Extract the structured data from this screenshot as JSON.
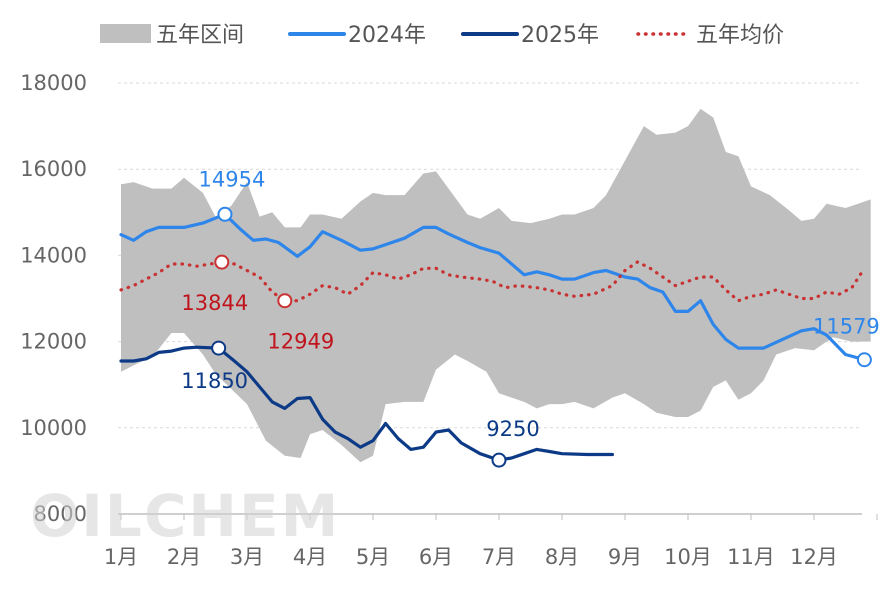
{
  "chart_data": {
    "type": "line",
    "watermark": "OILCHEM",
    "yaxis": {
      "min": 8000,
      "max": 18000,
      "ticks": [
        8000,
        10000,
        12000,
        14000,
        16000,
        18000
      ]
    },
    "xaxis": {
      "min": 1,
      "max": 13,
      "ticks": [
        1,
        2,
        3,
        4,
        5,
        6,
        7,
        8,
        9,
        10,
        11,
        12
      ],
      "tick_labels": [
        "1月",
        "2月",
        "3月",
        "4月",
        "5月",
        "6月",
        "7月",
        "8月",
        "9月",
        "10月",
        "11月",
        "12月"
      ]
    },
    "legend": {
      "placement": "top",
      "items": [
        {
          "label": "五年区间",
          "kind": "area",
          "color": "#bfbfbf"
        },
        {
          "label": "2024年",
          "kind": "line",
          "color": "#2f86ea"
        },
        {
          "label": "2025年",
          "kind": "line",
          "color": "#0d3a86"
        },
        {
          "label": "五年均价",
          "kind": "dotted",
          "color": "#c83232"
        }
      ]
    },
    "band": {
      "name": "五年区间",
      "color": "#bfbfbf",
      "upper": [
        [
          1.0,
          15650
        ],
        [
          1.2,
          15700
        ],
        [
          1.5,
          15550
        ],
        [
          1.8,
          15550
        ],
        [
          2.0,
          15800
        ],
        [
          2.3,
          15450
        ],
        [
          2.5,
          14900
        ],
        [
          2.75,
          15150
        ],
        [
          3.0,
          15700
        ],
        [
          3.2,
          14900
        ],
        [
          3.4,
          15000
        ],
        [
          3.6,
          14650
        ],
        [
          3.85,
          14650
        ],
        [
          4.0,
          14950
        ],
        [
          4.2,
          14950
        ],
        [
          4.5,
          14850
        ],
        [
          4.8,
          15250
        ],
        [
          5.0,
          15450
        ],
        [
          5.2,
          15400
        ],
        [
          5.5,
          15400
        ],
        [
          5.8,
          15900
        ],
        [
          6.0,
          15950
        ],
        [
          6.2,
          15550
        ],
        [
          6.5,
          14950
        ],
        [
          6.7,
          14850
        ],
        [
          7.0,
          15100
        ],
        [
          7.2,
          14800
        ],
        [
          7.5,
          14750
        ],
        [
          7.8,
          14850
        ],
        [
          8.0,
          14950
        ],
        [
          8.2,
          14950
        ],
        [
          8.5,
          15100
        ],
        [
          8.7,
          15400
        ],
        [
          9.0,
          16200
        ],
        [
          9.3,
          17000
        ],
        [
          9.5,
          16800
        ],
        [
          9.8,
          16850
        ],
        [
          10.0,
          17000
        ],
        [
          10.2,
          17400
        ],
        [
          10.4,
          17200
        ],
        [
          10.6,
          16400
        ],
        [
          10.8,
          16300
        ],
        [
          11.0,
          15600
        ],
        [
          11.3,
          15400
        ],
        [
          11.6,
          15050
        ],
        [
          11.8,
          14800
        ],
        [
          12.0,
          14850
        ],
        [
          12.2,
          15200
        ],
        [
          12.5,
          15100
        ],
        [
          12.7,
          15200
        ],
        [
          12.9,
          15300
        ]
      ],
      "lower": [
        [
          1.0,
          11300
        ],
        [
          1.2,
          11450
        ],
        [
          1.5,
          11650
        ],
        [
          1.8,
          12200
        ],
        [
          2.0,
          12200
        ],
        [
          2.3,
          11700
        ],
        [
          2.5,
          11250
        ],
        [
          2.75,
          10900
        ],
        [
          3.0,
          10550
        ],
        [
          3.3,
          9700
        ],
        [
          3.6,
          9350
        ],
        [
          3.85,
          9300
        ],
        [
          4.0,
          9850
        ],
        [
          4.2,
          9950
        ],
        [
          4.5,
          9600
        ],
        [
          4.8,
          9200
        ],
        [
          5.0,
          9350
        ],
        [
          5.2,
          10550
        ],
        [
          5.5,
          10600
        ],
        [
          5.8,
          10600
        ],
        [
          6.0,
          11350
        ],
        [
          6.3,
          11700
        ],
        [
          6.5,
          11550
        ],
        [
          6.8,
          11300
        ],
        [
          7.0,
          10800
        ],
        [
          7.2,
          10700
        ],
        [
          7.4,
          10600
        ],
        [
          7.6,
          10450
        ],
        [
          7.8,
          10550
        ],
        [
          8.0,
          10550
        ],
        [
          8.2,
          10600
        ],
        [
          8.5,
          10450
        ],
        [
          8.8,
          10700
        ],
        [
          9.0,
          10800
        ],
        [
          9.3,
          10550
        ],
        [
          9.5,
          10350
        ],
        [
          9.8,
          10250
        ],
        [
          10.0,
          10250
        ],
        [
          10.2,
          10400
        ],
        [
          10.4,
          10950
        ],
        [
          10.6,
          11100
        ],
        [
          10.8,
          10650
        ],
        [
          11.0,
          10800
        ],
        [
          11.2,
          11100
        ],
        [
          11.4,
          11700
        ],
        [
          11.7,
          11850
        ],
        [
          12.0,
          11800
        ],
        [
          12.3,
          12100
        ],
        [
          12.6,
          12000
        ],
        [
          12.9,
          12000
        ]
      ]
    },
    "series": [
      {
        "name": "2024年",
        "color": "#2f86ea",
        "points": [
          [
            1.0,
            14480
          ],
          [
            1.2,
            14350
          ],
          [
            1.4,
            14550
          ],
          [
            1.6,
            14650
          ],
          [
            1.8,
            14650
          ],
          [
            2.0,
            14650
          ],
          [
            2.3,
            14750
          ],
          [
            2.65,
            14954
          ],
          [
            2.9,
            14600
          ],
          [
            3.1,
            14350
          ],
          [
            3.3,
            14380
          ],
          [
            3.5,
            14300
          ],
          [
            3.8,
            13980
          ],
          [
            4.0,
            14200
          ],
          [
            4.2,
            14550
          ],
          [
            4.5,
            14350
          ],
          [
            4.8,
            14120
          ],
          [
            5.0,
            14150
          ],
          [
            5.2,
            14250
          ],
          [
            5.5,
            14400
          ],
          [
            5.8,
            14650
          ],
          [
            6.0,
            14650
          ],
          [
            6.2,
            14500
          ],
          [
            6.5,
            14300
          ],
          [
            6.7,
            14180
          ],
          [
            7.0,
            14050
          ],
          [
            7.2,
            13800
          ],
          [
            7.4,
            13550
          ],
          [
            7.6,
            13620
          ],
          [
            7.8,
            13550
          ],
          [
            8.0,
            13450
          ],
          [
            8.2,
            13450
          ],
          [
            8.5,
            13600
          ],
          [
            8.7,
            13650
          ],
          [
            9.0,
            13500
          ],
          [
            9.2,
            13450
          ],
          [
            9.4,
            13250
          ],
          [
            9.6,
            13150
          ],
          [
            9.8,
            12700
          ],
          [
            10.0,
            12700
          ],
          [
            10.2,
            12950
          ],
          [
            10.4,
            12400
          ],
          [
            10.6,
            12050
          ],
          [
            10.8,
            11850
          ],
          [
            11.0,
            11850
          ],
          [
            11.2,
            11850
          ],
          [
            11.5,
            12050
          ],
          [
            11.8,
            12250
          ],
          [
            12.0,
            12300
          ],
          [
            12.2,
            12150
          ],
          [
            12.5,
            11700
          ],
          [
            12.8,
            11579
          ]
        ],
        "label_points": [
          {
            "x": 2.65,
            "y": 14954,
            "text": "14954"
          },
          {
            "x": 12.8,
            "y": 11579,
            "text": "11579"
          }
        ]
      },
      {
        "name": "2025年",
        "color": "#0d3a86",
        "points": [
          [
            1.0,
            11550
          ],
          [
            1.2,
            11550
          ],
          [
            1.4,
            11600
          ],
          [
            1.6,
            11750
          ],
          [
            1.8,
            11780
          ],
          [
            2.0,
            11850
          ],
          [
            2.2,
            11870
          ],
          [
            2.55,
            11850
          ],
          [
            2.8,
            11550
          ],
          [
            3.0,
            11300
          ],
          [
            3.2,
            10950
          ],
          [
            3.4,
            10600
          ],
          [
            3.6,
            10450
          ],
          [
            3.8,
            10680
          ],
          [
            4.0,
            10700
          ],
          [
            4.2,
            10200
          ],
          [
            4.4,
            9900
          ],
          [
            4.6,
            9750
          ],
          [
            4.8,
            9550
          ],
          [
            5.0,
            9700
          ],
          [
            5.2,
            10100
          ],
          [
            5.4,
            9750
          ],
          [
            5.6,
            9500
          ],
          [
            5.8,
            9550
          ],
          [
            6.0,
            9900
          ],
          [
            6.2,
            9950
          ],
          [
            6.4,
            9650
          ],
          [
            6.7,
            9400
          ],
          [
            7.0,
            9250
          ],
          [
            7.2,
            9300
          ],
          [
            7.4,
            9400
          ],
          [
            7.6,
            9500
          ],
          [
            7.8,
            9450
          ],
          [
            8.0,
            9400
          ],
          [
            8.4,
            9380
          ],
          [
            8.8,
            9380
          ]
        ],
        "label_points": [
          {
            "x": 2.55,
            "y": 11850,
            "text": "11850"
          },
          {
            "x": 7.0,
            "y": 9250,
            "text": "9250"
          }
        ]
      },
      {
        "name": "五年均价",
        "color": "#c83232",
        "points": [
          [
            1.0,
            13200
          ],
          [
            1.2,
            13300
          ],
          [
            1.4,
            13450
          ],
          [
            1.6,
            13600
          ],
          [
            1.8,
            13800
          ],
          [
            2.0,
            13800
          ],
          [
            2.2,
            13750
          ],
          [
            2.6,
            13844
          ],
          [
            2.8,
            13800
          ],
          [
            3.0,
            13650
          ],
          [
            3.2,
            13500
          ],
          [
            3.4,
            13150
          ],
          [
            3.6,
            12950
          ],
          [
            3.8,
            12950
          ],
          [
            4.0,
            13100
          ],
          [
            4.2,
            13300
          ],
          [
            4.4,
            13250
          ],
          [
            4.6,
            13100
          ],
          [
            4.8,
            13300
          ],
          [
            5.0,
            13600
          ],
          [
            5.2,
            13550
          ],
          [
            5.4,
            13450
          ],
          [
            5.6,
            13550
          ],
          [
            5.8,
            13700
          ],
          [
            6.0,
            13700
          ],
          [
            6.2,
            13550
          ],
          [
            6.4,
            13500
          ],
          [
            6.7,
            13450
          ],
          [
            6.9,
            13400
          ],
          [
            7.1,
            13250
          ],
          [
            7.3,
            13300
          ],
          [
            7.6,
            13250
          ],
          [
            7.8,
            13200
          ],
          [
            8.0,
            13100
          ],
          [
            8.2,
            13050
          ],
          [
            8.5,
            13100
          ],
          [
            8.8,
            13300
          ],
          [
            9.0,
            13650
          ],
          [
            9.2,
            13850
          ],
          [
            9.4,
            13700
          ],
          [
            9.6,
            13500
          ],
          [
            9.8,
            13300
          ],
          [
            10.0,
            13400
          ],
          [
            10.2,
            13500
          ],
          [
            10.4,
            13500
          ],
          [
            10.6,
            13200
          ],
          [
            10.8,
            12950
          ],
          [
            11.0,
            13050
          ],
          [
            11.2,
            13100
          ],
          [
            11.4,
            13200
          ],
          [
            11.6,
            13100
          ],
          [
            11.8,
            13000
          ],
          [
            12.0,
            13000
          ],
          [
            12.2,
            13150
          ],
          [
            12.4,
            13100
          ],
          [
            12.6,
            13250
          ],
          [
            12.8,
            13700
          ]
        ],
        "label_points": [
          {
            "x": 2.6,
            "y": 13844,
            "text": "13844"
          },
          {
            "x": 3.6,
            "y": 12949,
            "text": "12949"
          }
        ]
      }
    ]
  }
}
